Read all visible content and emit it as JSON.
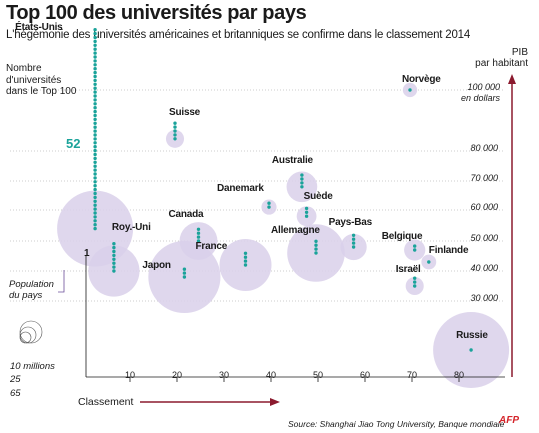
{
  "title": "Top 100 des universités par pays",
  "subtitle": "L'hégémonie des universités américaines et britanniques se confirme dans le classement 2014",
  "source": "Source:  Shanghai Jiao Tong University, Banque mondiale",
  "logo": "AFP",
  "colors": {
    "bubble": "#d9d0ea",
    "dot": "#1aa39a",
    "axis_arrow": "#8b1a2e",
    "grid": "#9a9a9a"
  },
  "chart_data": {
    "type": "scatter",
    "ylabel": "PIB\npar habitant",
    "yunit": "100 000\nen dollars",
    "xlabel": "Classement",
    "count_label": "Nombre\nd'universités\ndans le Top 100",
    "size_label": "Population\ndu pays",
    "size_legend": [
      "10 millions",
      "25",
      "65"
    ],
    "x_ticks": [
      10,
      20,
      30,
      40,
      50,
      60,
      70,
      80
    ],
    "y_ticks": [
      "100 000",
      "80 000",
      "70 000",
      "60 000",
      "50 000",
      "40 000",
      "30 000"
    ],
    "y_tick_values": [
      100000,
      80000,
      70000,
      60000,
      50000,
      40000,
      30000
    ],
    "count_annotation_max": "52",
    "count_annotation_min": "1",
    "points": [
      {
        "country": "États-Unis",
        "rank": 3,
        "gdp": 54000,
        "universities": 52,
        "population": 320
      },
      {
        "country": "Roy.-Uni",
        "rank": 7,
        "gdp": 40000,
        "universities": 8,
        "population": 64
      },
      {
        "country": "Suisse",
        "rank": 20,
        "gdp": 84000,
        "universities": 5,
        "population": 8
      },
      {
        "country": "Canada",
        "rank": 25,
        "gdp": 50000,
        "universities": 4,
        "population": 35
      },
      {
        "country": "Japon",
        "rank": 22,
        "gdp": 38000,
        "universities": 3,
        "population": 127
      },
      {
        "country": "France",
        "rank": 35,
        "gdp": 42000,
        "universities": 4,
        "population": 66
      },
      {
        "country": "Danemark",
        "rank": 40,
        "gdp": 61000,
        "universities": 2,
        "population": 5.6
      },
      {
        "country": "Australie",
        "rank": 47,
        "gdp": 68000,
        "universities": 4,
        "population": 23
      },
      {
        "country": "Suède",
        "rank": 48,
        "gdp": 58000,
        "universities": 3,
        "population": 9.6
      },
      {
        "country": "Allemagne",
        "rank": 50,
        "gdp": 46000,
        "universities": 4,
        "population": 81
      },
      {
        "country": "Pays-Bas",
        "rank": 58,
        "gdp": 48000,
        "universities": 4,
        "population": 16.8
      },
      {
        "country": "Norvège",
        "rank": 70,
        "gdp": 100000,
        "universities": 1,
        "population": 5
      },
      {
        "country": "Belgique",
        "rank": 71,
        "gdp": 47000,
        "universities": 2,
        "population": 11
      },
      {
        "country": "Finlande",
        "rank": 74,
        "gdp": 43000,
        "universities": 1,
        "population": 5.4
      },
      {
        "country": "Israël",
        "rank": 71,
        "gdp": 35000,
        "universities": 3,
        "population": 8
      },
      {
        "country": "Russie",
        "rank": 83,
        "gdp": 13000,
        "universities": 1,
        "population": 143
      }
    ]
  }
}
